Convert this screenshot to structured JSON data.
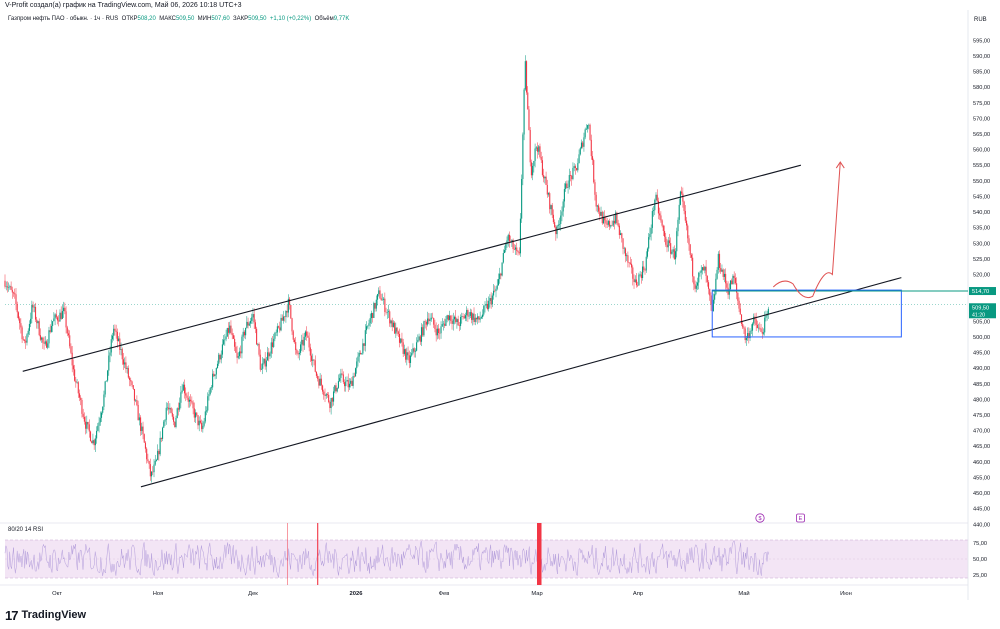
{
  "caption": "V-Profit создал(а) график на TradingView.com, Май 06, 2026 10:18 UTC+3",
  "legend": {
    "symbol": "Газпром нефть ПАО · обыкн. · 1ч · RUS",
    "open_label": "ОТКР",
    "open": "508,20",
    "high_label": "МАКС",
    "high": "509,50",
    "low_label": "МИН",
    "low": "507,60",
    "close_label": "ЗАКР",
    "close": "509,50",
    "change": "+1,10 (+0,22%)",
    "volume_label": "Объём",
    "volume": "9,77K"
  },
  "currency": "RUB",
  "logo_text": "TradingView",
  "rsi_label": "80/20 14 RSI",
  "price_axis": {
    "ticks": [
      "595,00",
      "590,00",
      "585,00",
      "580,00",
      "575,00",
      "570,00",
      "565,00",
      "560,00",
      "555,00",
      "550,00",
      "545,00",
      "540,00",
      "535,00",
      "530,00",
      "525,00",
      "520,00",
      "515,00",
      "510,00",
      "505,00",
      "500,00",
      "495,00",
      "490,00",
      "485,00",
      "480,00",
      "475,00",
      "470,00",
      "465,00",
      "460,00",
      "455,00",
      "450,00",
      "445,00",
      "440,00"
    ],
    "badge_level": "514,70",
    "badge_last": "509,50",
    "badge_timer": "41:20"
  },
  "rsi_axis": {
    "ticks": [
      "75,00",
      "50,00",
      "25,00"
    ]
  },
  "time_axis": {
    "ticks": [
      "Окт",
      "Ноя",
      "Дек",
      "2026",
      "Фев",
      "Мар",
      "Апр",
      "Май",
      "Июн"
    ]
  },
  "colors": {
    "up": "#089981",
    "down": "#f23645",
    "channel": "#131722",
    "zone": "#2962ff",
    "level": "#089981",
    "forecast": "#e05252",
    "rsi_band": "#f3e5f5",
    "rsi_line": "#b39ddb"
  },
  "chart_data": {
    "type": "candlestick",
    "title": "Газпром нефть ПАО · обыкн. · 1ч · RUS",
    "ylabel": "RUB",
    "ylim": [
      440,
      597
    ],
    "x": [
      "Окт",
      "Ноя",
      "Дек",
      "2026",
      "Фев",
      "Мар",
      "Апр",
      "Май",
      "Июн"
    ],
    "price_path": [
      [
        0,
        518
      ],
      [
        0.5,
        512
      ],
      [
        1,
        497
      ],
      [
        1.4,
        510
      ],
      [
        2,
        496
      ],
      [
        2.4,
        505
      ],
      [
        3,
        508
      ],
      [
        3.5,
        488
      ],
      [
        4.1,
        472
      ],
      [
        4.5,
        466
      ],
      [
        5,
        480
      ],
      [
        5.5,
        503
      ],
      [
        6,
        493
      ],
      [
        6.5,
        482
      ],
      [
        7,
        468
      ],
      [
        7.4,
        455
      ],
      [
        7.7,
        460
      ],
      [
        8.2,
        478
      ],
      [
        8.6,
        472
      ],
      [
        9,
        485
      ],
      [
        9.5,
        477
      ],
      [
        10,
        470
      ],
      [
        10.5,
        486
      ],
      [
        11,
        496
      ],
      [
        11.4,
        503
      ],
      [
        11.8,
        492
      ],
      [
        12.2,
        503
      ],
      [
        12.6,
        507
      ],
      [
        13,
        489
      ],
      [
        13.5,
        497
      ],
      [
        14,
        504
      ],
      [
        14.4,
        511
      ],
      [
        14.8,
        493
      ],
      [
        15.3,
        501
      ],
      [
        15.8,
        488
      ],
      [
        16.5,
        479
      ],
      [
        17,
        487
      ],
      [
        17.5,
        484
      ],
      [
        18,
        494
      ],
      [
        18.5,
        505
      ],
      [
        19,
        514
      ],
      [
        19.6,
        505
      ],
      [
        20,
        499
      ],
      [
        20.5,
        492
      ],
      [
        21,
        499
      ],
      [
        21.5,
        507
      ],
      [
        22,
        501
      ],
      [
        22.5,
        507
      ],
      [
        23,
        504
      ],
      [
        23.5,
        508
      ],
      [
        24,
        505
      ],
      [
        24.5,
        510
      ],
      [
        25,
        516
      ],
      [
        25.5,
        532
      ],
      [
        26.1,
        525
      ],
      [
        26.4,
        588
      ],
      [
        26.7,
        553
      ],
      [
        27,
        562
      ],
      [
        27.5,
        547
      ],
      [
        28,
        533
      ],
      [
        28.5,
        549
      ],
      [
        29,
        554
      ],
      [
        29.6,
        570
      ],
      [
        30,
        543
      ],
      [
        30.5,
        535
      ],
      [
        31,
        538
      ],
      [
        31.5,
        526
      ],
      [
        32,
        517
      ],
      [
        32.5,
        523
      ],
      [
        33,
        545
      ],
      [
        33.5,
        531
      ],
      [
        34,
        526
      ],
      [
        34.3,
        546
      ],
      [
        34.6,
        534
      ],
      [
        35,
        517
      ],
      [
        35.5,
        522
      ],
      [
        35.9,
        507
      ],
      [
        36.2,
        525
      ],
      [
        36.7,
        515
      ],
      [
        37,
        519
      ],
      [
        37.3,
        508
      ],
      [
        37.6,
        499
      ],
      [
        38,
        505
      ],
      [
        38.4,
        501
      ],
      [
        38.8,
        509
      ]
    ],
    "annotations": {
      "channel_upper": [
        [
          0.9,
          489
        ],
        [
          40.4,
          555
        ]
      ],
      "channel_lower": [
        [
          6.9,
          452
        ],
        [
          45.5,
          519
        ]
      ],
      "horizontal_level": 514.7,
      "rect_zone": [
        [
          35.9,
          500
        ],
        [
          45.5,
          515
        ]
      ],
      "forecast_path": [
        [
          39,
          516
        ],
        [
          40,
          517
        ],
        [
          41,
          513
        ],
        [
          42,
          520
        ],
        [
          42.4,
          556
        ]
      ]
    },
    "rsi": {
      "overbought": 80,
      "oversold": 20,
      "period": 14,
      "axis_ticks": [
        75,
        50,
        25
      ]
    }
  }
}
